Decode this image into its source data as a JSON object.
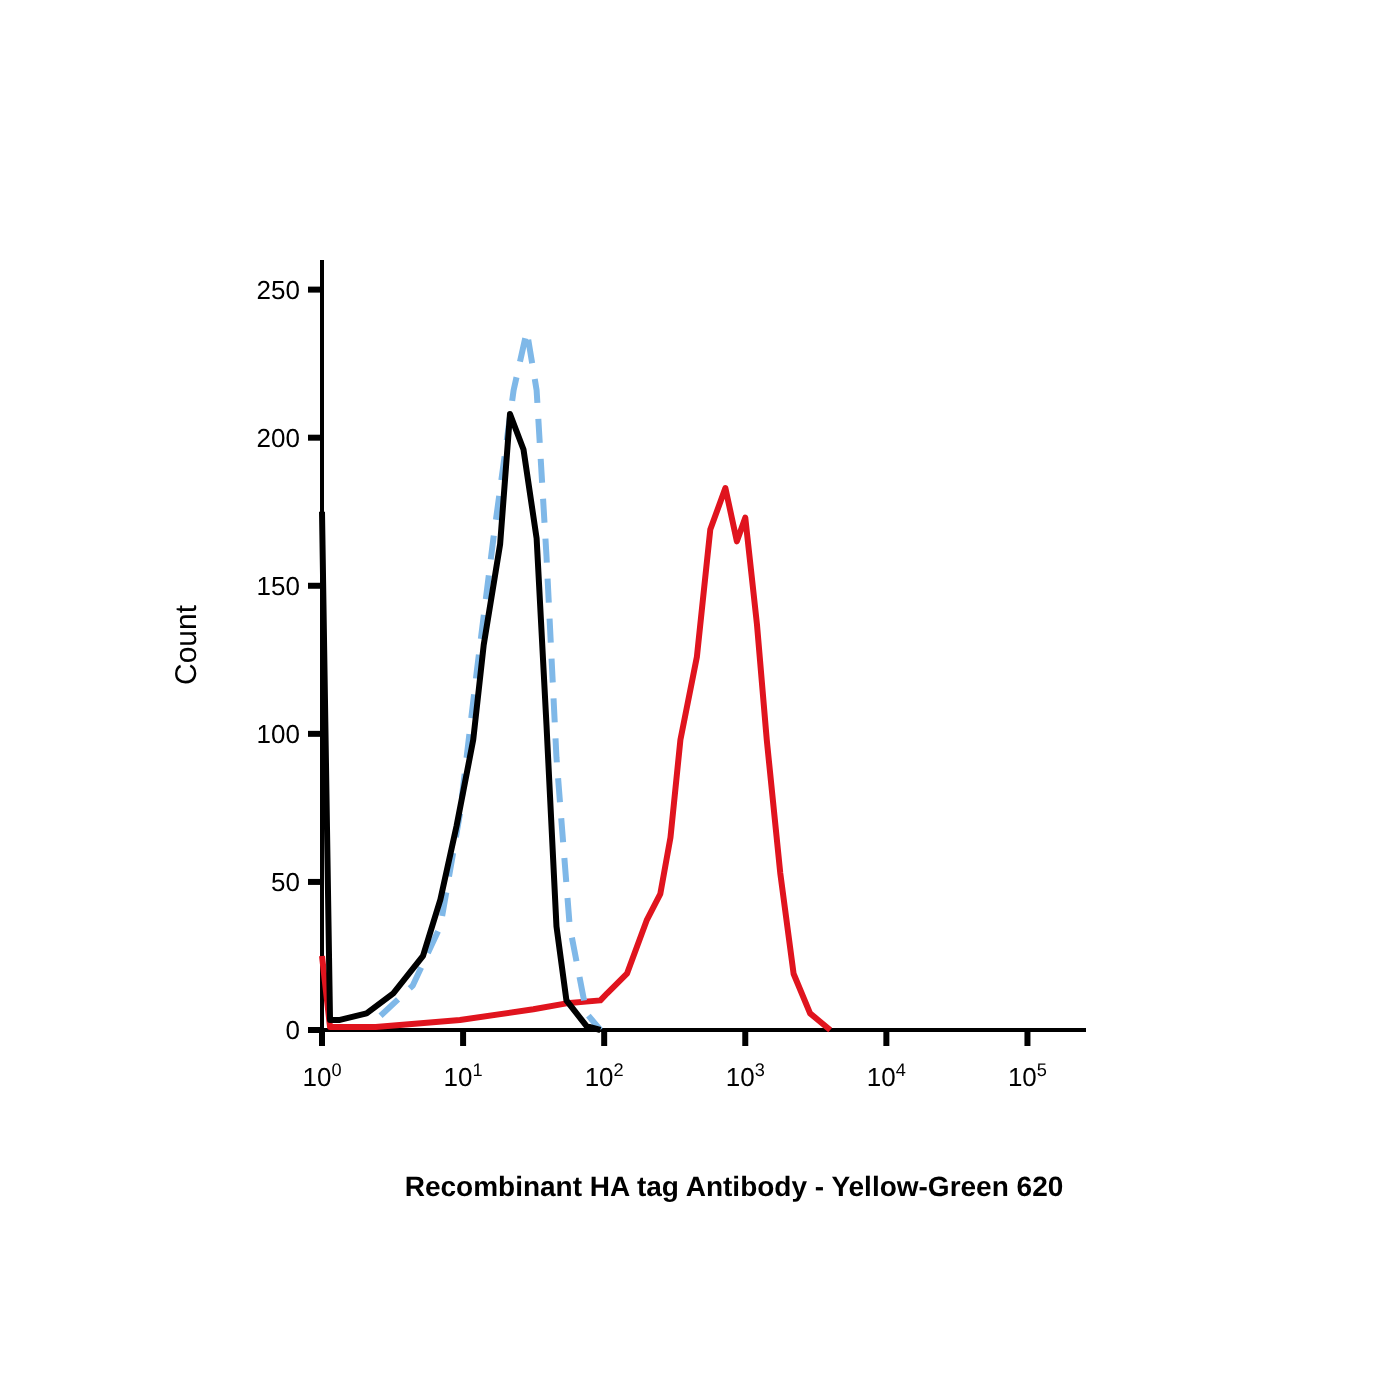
{
  "chart_data": {
    "type": "line",
    "xlabel": "Recombinant HA tag Antibody - Yellow-Green 620",
    "ylabel": "Count",
    "log": "x",
    "grid": false,
    "marker": "none",
    "xlim": [
      1,
      260000
    ],
    "xticks": [
      {
        "value": 1,
        "label": "10$^{0}$"
      },
      {
        "value": 10,
        "label": "10$^{1}$"
      },
      {
        "value": 100,
        "label": "10$^{2}$"
      },
      {
        "value": 1000,
        "label": "10$^{3}$"
      },
      {
        "value": 10000,
        "label": "10$^{4}$"
      },
      {
        "value": 100000,
        "label": "10$^{5}$"
      }
    ],
    "ylim": [
      0,
      260
    ],
    "yticks": [
      0,
      50,
      100,
      150,
      200,
      250
    ],
    "series": [
      {
        "color": "#e0141e",
        "line_style": "solid",
        "x": [
          1,
          1.14,
          2.4,
          9.5,
          31.5,
          54,
          94,
          105,
          145,
          200,
          250,
          295,
          347,
          454,
          565,
          723,
          872,
          1000,
          1210,
          1420,
          1770,
          2200,
          2880,
          4000
        ],
        "values": [
          25,
          1,
          1,
          3.4,
          7,
          9,
          10,
          12.4,
          19,
          37,
          46,
          65,
          98,
          126,
          169,
          183,
          165,
          173,
          137,
          98,
          53,
          19,
          5.6,
          0
        ]
      },
      {
        "color": "#7fb8e8",
        "line_style": "dashed",
        "x": [
          2.6,
          4.4,
          6.9,
          9.5,
          12.5,
          16.4,
          22.8,
          28.3,
          33.2,
          39,
          45.9,
          57,
          75,
          94
        ],
        "values": [
          4.8,
          15,
          35,
          73,
          121,
          166,
          216,
          236,
          216,
          160,
          92,
          35,
          5.6,
          0
        ]
      },
      {
        "color": "#000000",
        "line_style": "solid",
        "x": [
          1,
          1.14,
          1.34,
          2.07,
          3.2,
          5.2,
          6.9,
          9,
          11.8,
          14,
          18.3,
          21.5,
          26.8,
          33.2,
          39,
          45.9,
          54,
          75,
          94
        ],
        "values": [
          175,
          3.4,
          3.4,
          5.6,
          12.4,
          25,
          44,
          69,
          98,
          130,
          164,
          208,
          196,
          166,
          103,
          35,
          10,
          1.3,
          0
        ]
      }
    ]
  }
}
